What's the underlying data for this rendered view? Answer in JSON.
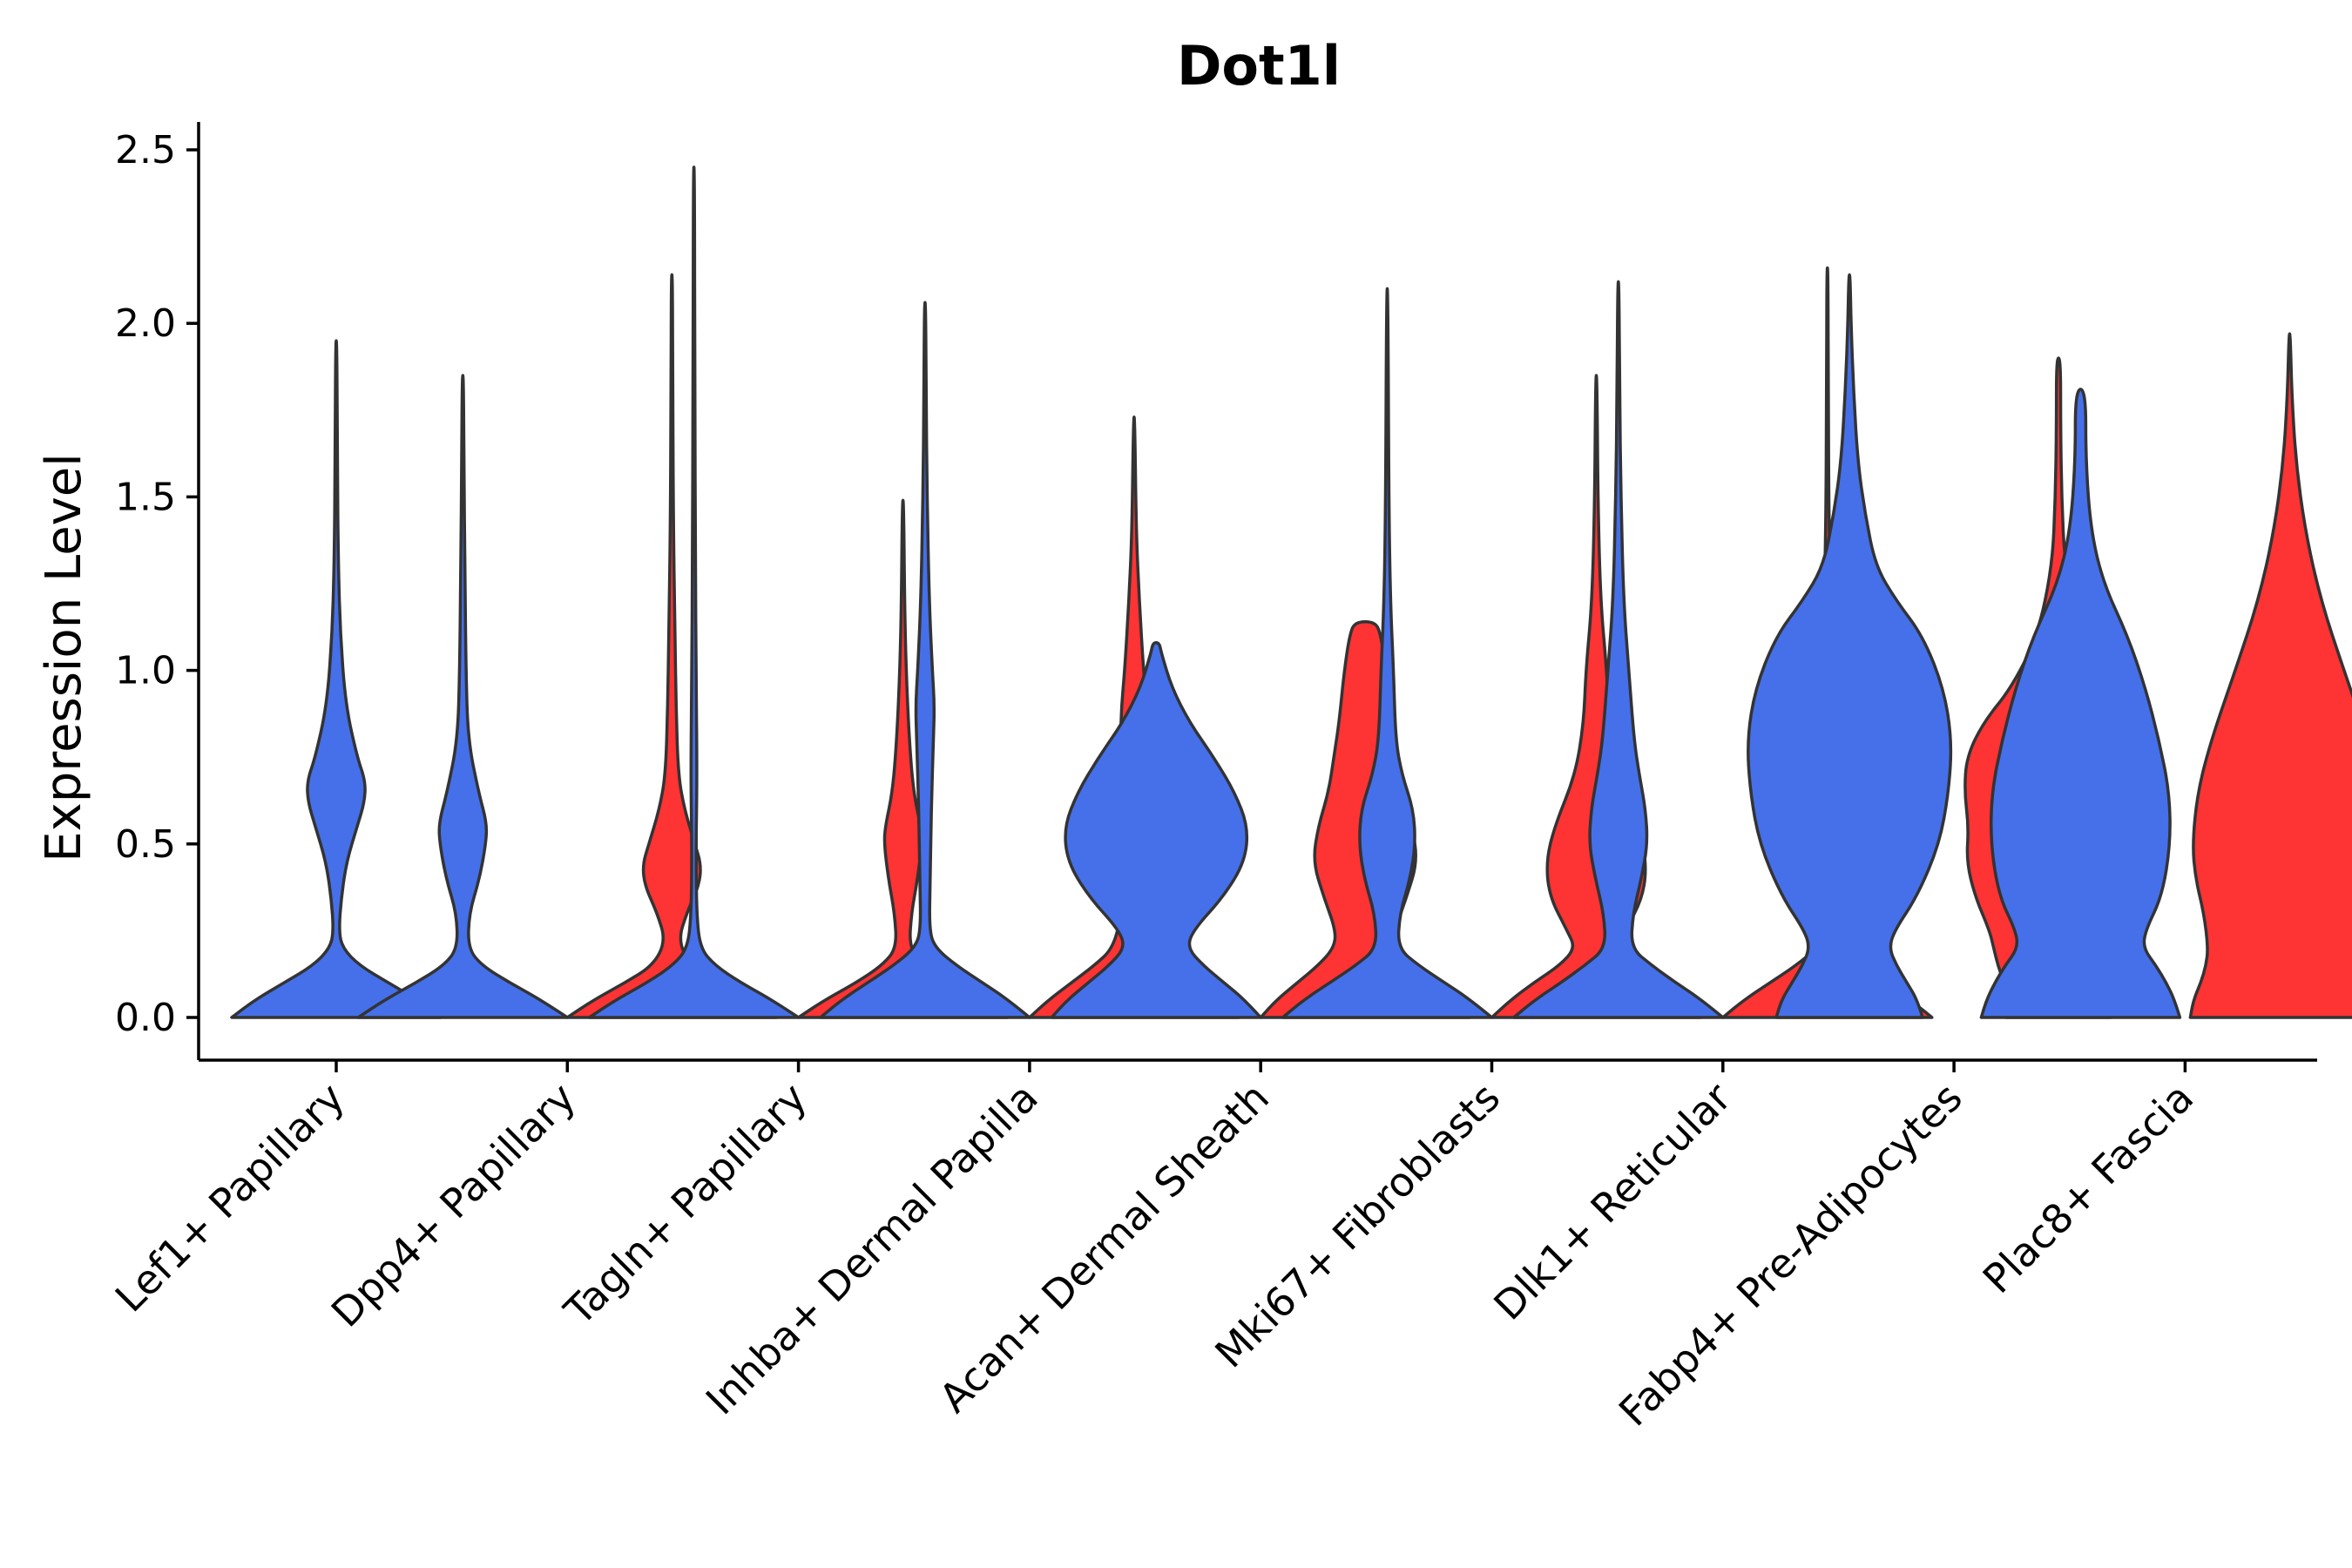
{
  "chart_data": {
    "type": "violin",
    "title": "Dot1l",
    "xlabel": "",
    "ylabel": "Expression Level",
    "ylim": [
      -0.12,
      2.58
    ],
    "yticks": [
      "0.0",
      "0.5",
      "1.0",
      "1.5",
      "2.0",
      "2.5"
    ],
    "ytick_values": [
      0,
      0.5,
      1.0,
      1.5,
      2.0,
      2.5
    ],
    "grid": false,
    "legend": "none",
    "series_colors": {
      "group_1": "#4570EA",
      "group_2": "#FE3334"
    },
    "categories": [
      "Lef1+ Papillary",
      "Dpp4+ Papillary",
      "Tagln+ Papillary",
      "Inhba+ Dermal Papilla",
      "Acan+ Dermal Sheath",
      "Mki67+ Fibroblasts",
      "Dlk1+ Reticular",
      "Fabp4+ Pre-Adipocytes",
      "Plac8+ Fascia"
    ],
    "violins": [
      {
        "category": "Lef1+ Papillary",
        "group": "group_1",
        "offset": 0,
        "max": 1.95,
        "profile": [
          [
            0,
            1.0
          ],
          [
            0.05,
            0.78
          ],
          [
            0.1,
            0.5
          ],
          [
            0.15,
            0.22
          ],
          [
            0.2,
            0.06
          ],
          [
            0.25,
            0.025
          ],
          [
            0.35,
            0.05
          ],
          [
            0.45,
            0.1
          ],
          [
            0.55,
            0.2
          ],
          [
            0.62,
            0.27
          ],
          [
            0.68,
            0.28
          ],
          [
            0.75,
            0.2
          ],
          [
            0.9,
            0.09
          ],
          [
            1.1,
            0.04
          ],
          [
            1.3,
            0.02
          ],
          [
            1.6,
            0.01
          ],
          [
            1.95,
            0.006
          ]
        ]
      },
      {
        "category": "Dpp4+ Papillary",
        "group": "group_1",
        "offset": -0.23,
        "max": 1.85,
        "profile": [
          [
            0,
            1.0
          ],
          [
            0.05,
            0.75
          ],
          [
            0.1,
            0.45
          ],
          [
            0.15,
            0.18
          ],
          [
            0.2,
            0.05
          ],
          [
            0.3,
            0.06
          ],
          [
            0.4,
            0.16
          ],
          [
            0.5,
            0.22
          ],
          [
            0.56,
            0.23
          ],
          [
            0.65,
            0.15
          ],
          [
            0.8,
            0.05
          ],
          [
            1.0,
            0.03
          ],
          [
            1.3,
            0.02
          ],
          [
            1.6,
            0.01
          ],
          [
            1.85,
            0.006
          ]
        ]
      },
      {
        "category": "Dpp4+ Papillary",
        "group": "group_2",
        "offset": 0.23,
        "max": 2.14,
        "profile": [
          [
            0,
            1.0
          ],
          [
            0.05,
            0.75
          ],
          [
            0.1,
            0.45
          ],
          [
            0.15,
            0.18
          ],
          [
            0.22,
            0.06
          ],
          [
            0.3,
            0.14
          ],
          [
            0.38,
            0.26
          ],
          [
            0.44,
            0.28
          ],
          [
            0.5,
            0.22
          ],
          [
            0.6,
            0.12
          ],
          [
            0.7,
            0.06
          ],
          [
            0.9,
            0.04
          ],
          [
            1.1,
            0.03
          ],
          [
            1.4,
            0.015
          ],
          [
            1.8,
            0.008
          ],
          [
            2.14,
            0.006
          ]
        ]
      },
      {
        "category": "Tagln+ Papillary",
        "group": "group_1",
        "offset": -0.23,
        "max": 2.45,
        "profile": [
          [
            0,
            1.0
          ],
          [
            0.05,
            0.75
          ],
          [
            0.1,
            0.45
          ],
          [
            0.15,
            0.2
          ],
          [
            0.2,
            0.06
          ],
          [
            0.3,
            0.025
          ],
          [
            0.5,
            0.02
          ],
          [
            0.7,
            0.03
          ],
          [
            1.0,
            0.02
          ],
          [
            1.3,
            0.015
          ],
          [
            1.8,
            0.008
          ],
          [
            2.45,
            0.006
          ]
        ]
      },
      {
        "category": "Tagln+ Papillary",
        "group": "group_2",
        "offset": 0.23,
        "max": 1.49,
        "profile": [
          [
            0,
            1.0
          ],
          [
            0.05,
            0.75
          ],
          [
            0.1,
            0.45
          ],
          [
            0.15,
            0.2
          ],
          [
            0.2,
            0.06
          ],
          [
            0.3,
            0.08
          ],
          [
            0.4,
            0.14
          ],
          [
            0.5,
            0.18
          ],
          [
            0.55,
            0.17
          ],
          [
            0.65,
            0.1
          ],
          [
            0.8,
            0.06
          ],
          [
            1.0,
            0.03
          ],
          [
            1.2,
            0.015
          ],
          [
            1.49,
            0.006
          ]
        ]
      },
      {
        "category": "Inhba+ Dermal Papilla",
        "group": "group_1",
        "offset": -0.23,
        "max": 2.06,
        "profile": [
          [
            0,
            1.0
          ],
          [
            0.05,
            0.8
          ],
          [
            0.1,
            0.55
          ],
          [
            0.15,
            0.3
          ],
          [
            0.2,
            0.1
          ],
          [
            0.25,
            0.04
          ],
          [
            0.4,
            0.05
          ],
          [
            0.6,
            0.06
          ],
          [
            0.8,
            0.08
          ],
          [
            0.9,
            0.09
          ],
          [
            1.0,
            0.07
          ],
          [
            1.2,
            0.04
          ],
          [
            1.5,
            0.02
          ],
          [
            1.8,
            0.01
          ],
          [
            2.06,
            0.006
          ]
        ]
      },
      {
        "category": "Inhba+ Dermal Papilla",
        "group": "group_2",
        "offset": 0.23,
        "max": 1.73,
        "profile": [
          [
            0,
            1.0
          ],
          [
            0.05,
            0.82
          ],
          [
            0.1,
            0.6
          ],
          [
            0.15,
            0.38
          ],
          [
            0.2,
            0.2
          ],
          [
            0.3,
            0.12
          ],
          [
            0.4,
            0.1
          ],
          [
            0.6,
            0.12
          ],
          [
            0.8,
            0.13
          ],
          [
            0.9,
            0.12
          ],
          [
            1.0,
            0.09
          ],
          [
            1.2,
            0.05
          ],
          [
            1.4,
            0.02
          ],
          [
            1.73,
            0.006
          ]
        ]
      },
      {
        "category": "Acan+ Dermal Sheath",
        "group": "group_1",
        "offset": -0.23,
        "max": 1.08,
        "profile": [
          [
            0,
            1.0
          ],
          [
            0.05,
            0.85
          ],
          [
            0.1,
            0.65
          ],
          [
            0.15,
            0.45
          ],
          [
            0.2,
            0.3
          ],
          [
            0.25,
            0.35
          ],
          [
            0.35,
            0.65
          ],
          [
            0.45,
            0.85
          ],
          [
            0.55,
            0.88
          ],
          [
            0.65,
            0.75
          ],
          [
            0.75,
            0.55
          ],
          [
            0.85,
            0.32
          ],
          [
            0.95,
            0.15
          ],
          [
            1.05,
            0.05
          ],
          [
            1.08,
            0.03
          ]
        ]
      },
      {
        "category": "Acan+ Dermal Sheath",
        "group": "group_2",
        "offset": 0.23,
        "max": 1.14,
        "profile": [
          [
            0,
            1.0
          ],
          [
            0.05,
            0.85
          ],
          [
            0.1,
            0.65
          ],
          [
            0.15,
            0.45
          ],
          [
            0.2,
            0.3
          ],
          [
            0.25,
            0.28
          ],
          [
            0.35,
            0.4
          ],
          [
            0.45,
            0.5
          ],
          [
            0.55,
            0.45
          ],
          [
            0.65,
            0.35
          ],
          [
            0.75,
            0.3
          ],
          [
            0.85,
            0.25
          ],
          [
            1.0,
            0.2
          ],
          [
            1.1,
            0.15
          ],
          [
            1.14,
            0.1
          ]
        ]
      },
      {
        "category": "Mki67+ Fibroblasts",
        "group": "group_1",
        "offset": -0.23,
        "max": 2.1,
        "profile": [
          [
            0,
            1.0
          ],
          [
            0.05,
            0.8
          ],
          [
            0.1,
            0.55
          ],
          [
            0.15,
            0.3
          ],
          [
            0.2,
            0.1
          ],
          [
            0.3,
            0.12
          ],
          [
            0.4,
            0.22
          ],
          [
            0.5,
            0.27
          ],
          [
            0.6,
            0.25
          ],
          [
            0.7,
            0.14
          ],
          [
            0.8,
            0.08
          ],
          [
            1.0,
            0.06
          ],
          [
            1.2,
            0.03
          ],
          [
            1.5,
            0.015
          ],
          [
            2.1,
            0.006
          ]
        ]
      },
      {
        "category": "Mki67+ Fibroblasts",
        "group": "group_2",
        "offset": 0.23,
        "max": 1.85,
        "profile": [
          [
            0,
            1.0
          ],
          [
            0.05,
            0.82
          ],
          [
            0.1,
            0.6
          ],
          [
            0.15,
            0.35
          ],
          [
            0.2,
            0.2
          ],
          [
            0.25,
            0.28
          ],
          [
            0.35,
            0.45
          ],
          [
            0.45,
            0.48
          ],
          [
            0.55,
            0.4
          ],
          [
            0.7,
            0.2
          ],
          [
            0.85,
            0.12
          ],
          [
            1.0,
            0.1
          ],
          [
            1.2,
            0.04
          ],
          [
            1.5,
            0.015
          ],
          [
            1.85,
            0.006
          ]
        ]
      },
      {
        "category": "Dlk1+ Reticular",
        "group": "group_1",
        "offset": -0.23,
        "max": 2.12,
        "profile": [
          [
            0,
            1.0
          ],
          [
            0.05,
            0.8
          ],
          [
            0.1,
            0.55
          ],
          [
            0.15,
            0.32
          ],
          [
            0.2,
            0.12
          ],
          [
            0.3,
            0.14
          ],
          [
            0.4,
            0.22
          ],
          [
            0.5,
            0.28
          ],
          [
            0.6,
            0.26
          ],
          [
            0.7,
            0.2
          ],
          [
            0.8,
            0.15
          ],
          [
            1.0,
            0.1
          ],
          [
            1.2,
            0.05
          ],
          [
            1.5,
            0.025
          ],
          [
            1.8,
            0.012
          ],
          [
            2.12,
            0.006
          ]
        ]
      },
      {
        "category": "Dlk1+ Reticular",
        "group": "group_2",
        "offset": 0.23,
        "max": 2.16,
        "profile": [
          [
            0,
            1.0
          ],
          [
            0.05,
            0.8
          ],
          [
            0.1,
            0.55
          ],
          [
            0.15,
            0.3
          ],
          [
            0.2,
            0.1
          ],
          [
            0.25,
            0.11
          ],
          [
            0.3,
            0.16
          ],
          [
            0.38,
            0.18
          ],
          [
            0.45,
            0.14
          ],
          [
            0.55,
            0.1
          ],
          [
            0.7,
            0.08
          ],
          [
            0.9,
            0.06
          ],
          [
            1.1,
            0.04
          ],
          [
            1.4,
            0.015
          ],
          [
            1.8,
            0.008
          ],
          [
            2.16,
            0.006
          ]
        ]
      },
      {
        "category": "Fabp4+ Pre-Adipocytes",
        "group": "group_1",
        "offset": -0.23,
        "max": 2.14,
        "profile": [
          [
            0,
            0.7
          ],
          [
            0.05,
            0.65
          ],
          [
            0.1,
            0.55
          ],
          [
            0.15,
            0.45
          ],
          [
            0.2,
            0.38
          ],
          [
            0.25,
            0.43
          ],
          [
            0.35,
            0.65
          ],
          [
            0.5,
            0.86
          ],
          [
            0.65,
            0.95
          ],
          [
            0.8,
            0.98
          ],
          [
            0.95,
            0.9
          ],
          [
            1.1,
            0.7
          ],
          [
            1.2,
            0.45
          ],
          [
            1.3,
            0.25
          ],
          [
            1.45,
            0.15
          ],
          [
            1.6,
            0.08
          ],
          [
            1.8,
            0.04
          ],
          [
            2.0,
            0.015
          ],
          [
            2.14,
            0.006
          ]
        ]
      },
      {
        "category": "Fabp4+ Pre-Adipocytes",
        "group": "group_2",
        "offset": 0.23,
        "max": 1.9,
        "profile": [
          [
            0,
            0.5
          ],
          [
            0.05,
            0.5
          ],
          [
            0.1,
            0.52
          ],
          [
            0.15,
            0.58
          ],
          [
            0.2,
            0.62
          ],
          [
            0.25,
            0.66
          ],
          [
            0.35,
            0.8
          ],
          [
            0.45,
            0.88
          ],
          [
            0.55,
            0.86
          ],
          [
            0.65,
            0.9
          ],
          [
            0.75,
            0.88
          ],
          [
            0.85,
            0.72
          ],
          [
            0.95,
            0.45
          ],
          [
            1.1,
            0.2
          ],
          [
            1.3,
            0.06
          ],
          [
            1.5,
            0.03
          ],
          [
            1.7,
            0.02
          ],
          [
            1.9,
            0.02
          ]
        ]
      },
      {
        "category": "Plac8+ Fascia",
        "group": "group_1",
        "offset": -0.23,
        "max": 1.81,
        "profile": [
          [
            0,
            0.95
          ],
          [
            0.05,
            0.9
          ],
          [
            0.1,
            0.82
          ],
          [
            0.15,
            0.72
          ],
          [
            0.2,
            0.6
          ],
          [
            0.25,
            0.62
          ],
          [
            0.35,
            0.78
          ],
          [
            0.5,
            0.86
          ],
          [
            0.65,
            0.85
          ],
          [
            0.8,
            0.75
          ],
          [
            0.95,
            0.62
          ],
          [
            1.1,
            0.45
          ],
          [
            1.25,
            0.22
          ],
          [
            1.4,
            0.1
          ],
          [
            1.6,
            0.05
          ],
          [
            1.81,
            0.05
          ]
        ]
      },
      {
        "category": "Plac8+ Fascia",
        "group": "group_2",
        "offset": 0.23,
        "max": 1.97,
        "profile": [
          [
            0,
            0.95
          ],
          [
            0.05,
            0.92
          ],
          [
            0.1,
            0.85
          ],
          [
            0.15,
            0.8
          ],
          [
            0.2,
            0.78
          ],
          [
            0.3,
            0.82
          ],
          [
            0.4,
            0.9
          ],
          [
            0.5,
            0.93
          ],
          [
            0.65,
            0.88
          ],
          [
            0.8,
            0.75
          ],
          [
            1.0,
            0.52
          ],
          [
            1.2,
            0.3
          ],
          [
            1.4,
            0.15
          ],
          [
            1.6,
            0.06
          ],
          [
            1.8,
            0.02
          ],
          [
            1.97,
            0.006
          ]
        ]
      }
    ]
  }
}
